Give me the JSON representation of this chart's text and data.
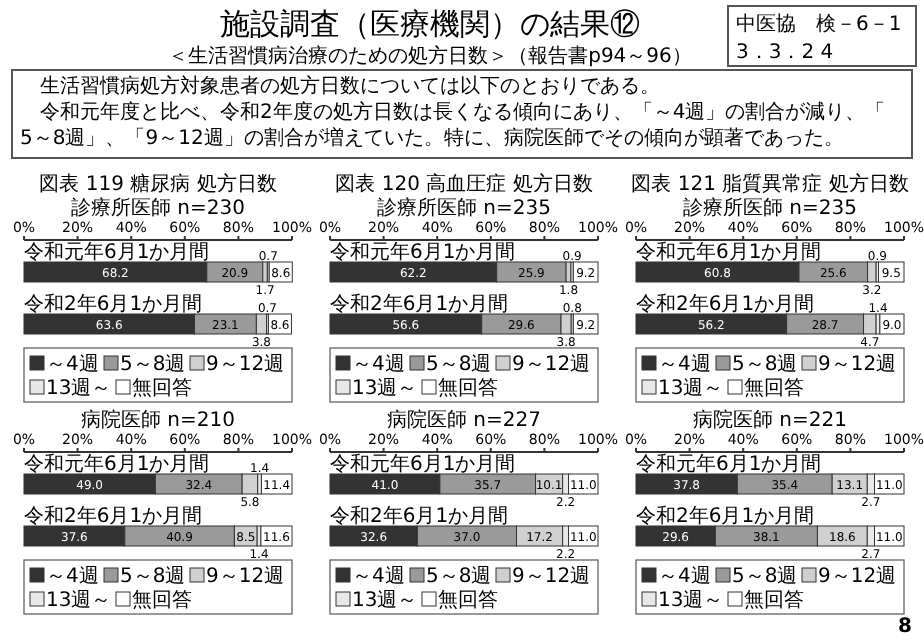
{
  "chart_data": [
    {
      "type": "other",
      "title": "施設調査（医療機関）の結果⑫",
      "subtitle": "＜生活習慣病治療のための処方日数＞（報告書p94～96）",
      "annotations": [
        "中医協　検－6－1",
        "3．3．2 4",
        "生活習慣病処方対象患者の処方日数については以下のとおりである。",
        "令和元年度と比べ、令和2年度の処方日数は長くなる傾向にあり、「～4週」の割合が減り、「5～8週」、「9～12週」の割合が増えていた。特に、病院医師でその傾向が顕著であった。",
        "8"
      ]
    },
    {
      "type": "bar",
      "title": "図表 119 糖尿病 処方日数",
      "subtitle": "診療所医師 n=230",
      "categories": [
        "令和元年6月1か月間",
        "令和2年6月1か月間"
      ],
      "orientation": "horizontal",
      "stacked": true,
      "xlim": [
        0,
        100
      ],
      "xticks": [
        {
          "value": 0,
          "label": "0%"
        },
        {
          "value": 20,
          "label": "20%"
        },
        {
          "value": 40,
          "label": "40%"
        },
        {
          "value": 60,
          "label": "60%"
        },
        {
          "value": 80,
          "label": "80%"
        },
        {
          "value": 100,
          "label": "100%"
        }
      ],
      "legend": "bottom",
      "data_labels": true,
      "series": [
        {
          "name": "～4週",
          "color": "#333333",
          "values": [
            68.2,
            63.6
          ]
        },
        {
          "name": "5～8週",
          "color": "#9a9a9a",
          "values": [
            20.9,
            23.1
          ]
        },
        {
          "name": "9～12週",
          "color": "#d0d0d0",
          "values": [
            1.7,
            3.8
          ]
        },
        {
          "name": "13週～",
          "color": "#e8e8e8",
          "values": [
            0.7,
            0.7
          ]
        },
        {
          "name": "無回答",
          "color": "#ffffff",
          "values": [
            8.6,
            8.6
          ]
        }
      ]
    },
    {
      "type": "bar",
      "title": "図表 120 高血圧症 処方日数",
      "subtitle": "診療所医師 n=235",
      "categories": [
        "令和元年6月1か月間",
        "令和2年6月1か月間"
      ],
      "orientation": "horizontal",
      "stacked": true,
      "xlim": [
        0,
        100
      ],
      "xticks": [
        {
          "value": 0,
          "label": "0%"
        },
        {
          "value": 20,
          "label": "20%"
        },
        {
          "value": 40,
          "label": "40%"
        },
        {
          "value": 60,
          "label": "60%"
        },
        {
          "value": 80,
          "label": "80%"
        },
        {
          "value": 100,
          "label": "100%"
        }
      ],
      "legend": "bottom",
      "data_labels": true,
      "series": [
        {
          "name": "～4週",
          "color": "#333333",
          "values": [
            62.2,
            56.6
          ]
        },
        {
          "name": "5～8週",
          "color": "#9a9a9a",
          "values": [
            25.9,
            29.6
          ]
        },
        {
          "name": "9～12週",
          "color": "#d0d0d0",
          "values": [
            1.8,
            3.8
          ]
        },
        {
          "name": "13週～",
          "color": "#e8e8e8",
          "values": [
            0.9,
            0.8
          ]
        },
        {
          "name": "無回答",
          "color": "#ffffff",
          "values": [
            9.2,
            9.2
          ]
        }
      ]
    },
    {
      "type": "bar",
      "title": "図表 121 脂質異常症 処方日数",
      "subtitle": "診療所医師 n=235",
      "categories": [
        "令和元年6月1か月間",
        "令和2年6月1か月間"
      ],
      "orientation": "horizontal",
      "stacked": true,
      "xlim": [
        0,
        100
      ],
      "xticks": [
        {
          "value": 0,
          "label": "0%"
        },
        {
          "value": 20,
          "label": "20%"
        },
        {
          "value": 40,
          "label": "40%"
        },
        {
          "value": 60,
          "label": "60%"
        },
        {
          "value": 80,
          "label": "80%"
        },
        {
          "value": 100,
          "label": "100%"
        }
      ],
      "legend": "bottom",
      "data_labels": true,
      "series": [
        {
          "name": "～4週",
          "color": "#333333",
          "values": [
            60.8,
            56.2
          ]
        },
        {
          "name": "5～8週",
          "color": "#9a9a9a",
          "values": [
            25.6,
            28.7
          ]
        },
        {
          "name": "9～12週",
          "color": "#d0d0d0",
          "values": [
            3.2,
            4.7
          ]
        },
        {
          "name": "13週～",
          "color": "#e8e8e8",
          "values": [
            0.9,
            1.4
          ]
        },
        {
          "name": "無回答",
          "color": "#ffffff",
          "values": [
            9.5,
            9.0
          ],
          "value_labels": [
            "9.5",
            "9.0"
          ]
        }
      ]
    },
    {
      "type": "bar",
      "subtitle": "病院医師 n=210",
      "categories": [
        "令和元年6月1か月間",
        "令和2年6月1か月間"
      ],
      "orientation": "horizontal",
      "stacked": true,
      "xlim": [
        0,
        100
      ],
      "xticks": [
        {
          "value": 0,
          "label": "0%"
        },
        {
          "value": 20,
          "label": "20%"
        },
        {
          "value": 40,
          "label": "40%"
        },
        {
          "value": 60,
          "label": "60%"
        },
        {
          "value": 80,
          "label": "80%"
        },
        {
          "value": 100,
          "label": "100%"
        }
      ],
      "legend": "bottom",
      "data_labels": true,
      "series": [
        {
          "name": "～4週",
          "color": "#333333",
          "values": [
            49.0,
            37.6
          ],
          "value_labels": [
            "49.0",
            "37.6"
          ]
        },
        {
          "name": "5～8週",
          "color": "#9a9a9a",
          "values": [
            32.4,
            40.9
          ]
        },
        {
          "name": "9～12週",
          "color": "#d0d0d0",
          "values": [
            5.8,
            8.5
          ]
        },
        {
          "name": "13週～",
          "color": "#e8e8e8",
          "values": [
            1.4,
            1.4
          ]
        },
        {
          "name": "無回答",
          "color": "#ffffff",
          "values": [
            11.4,
            11.6
          ]
        }
      ]
    },
    {
      "type": "bar",
      "subtitle": "病院医師 n=227",
      "categories": [
        "令和元年6月1か月間",
        "令和2年6月1か月間"
      ],
      "orientation": "horizontal",
      "stacked": true,
      "xlim": [
        0,
        100
      ],
      "xticks": [
        {
          "value": 0,
          "label": "0%"
        },
        {
          "value": 20,
          "label": "20%"
        },
        {
          "value": 40,
          "label": "40%"
        },
        {
          "value": 60,
          "label": "60%"
        },
        {
          "value": 80,
          "label": "80%"
        },
        {
          "value": 100,
          "label": "100%"
        }
      ],
      "legend": "bottom",
      "data_labels": true,
      "series": [
        {
          "name": "～4週",
          "color": "#333333",
          "values": [
            41.0,
            32.6
          ],
          "value_labels": [
            "41.0",
            "32.6"
          ]
        },
        {
          "name": "5～8週",
          "color": "#9a9a9a",
          "values": [
            35.7,
            37.0
          ],
          "value_labels": [
            "35.7",
            "37.0"
          ]
        },
        {
          "name": "9～12週",
          "color": "#d0d0d0",
          "values": [
            10.1,
            17.2
          ]
        },
        {
          "name": "13週～",
          "color": "#e8e8e8",
          "values": [
            2.2,
            2.2
          ]
        },
        {
          "name": "無回答",
          "color": "#ffffff",
          "values": [
            11.0,
            11.0
          ],
          "value_labels": [
            "11.0",
            "11.0"
          ]
        }
      ]
    },
    {
      "type": "bar",
      "subtitle": "病院医師 n=221",
      "categories": [
        "令和元年6月1か月間",
        "令和2年6月1か月間"
      ],
      "orientation": "horizontal",
      "stacked": true,
      "xlim": [
        0,
        100
      ],
      "xticks": [
        {
          "value": 0,
          "label": "0%"
        },
        {
          "value": 20,
          "label": "20%"
        },
        {
          "value": 40,
          "label": "40%"
        },
        {
          "value": 60,
          "label": "60%"
        },
        {
          "value": 80,
          "label": "80%"
        },
        {
          "value": 100,
          "label": "100%"
        }
      ],
      "legend": "bottom",
      "data_labels": true,
      "series": [
        {
          "name": "～4週",
          "color": "#333333",
          "values": [
            37.8,
            29.6
          ]
        },
        {
          "name": "5～8週",
          "color": "#9a9a9a",
          "values": [
            35.4,
            38.1
          ]
        },
        {
          "name": "9～12週",
          "color": "#d0d0d0",
          "values": [
            13.1,
            18.6
          ]
        },
        {
          "name": "13週～",
          "color": "#e8e8e8",
          "values": [
            2.7,
            2.7
          ]
        },
        {
          "name": "無回答",
          "color": "#ffffff",
          "values": [
            11.0,
            11.0
          ],
          "value_labels": [
            "11.0",
            "11.0"
          ]
        }
      ]
    }
  ]
}
